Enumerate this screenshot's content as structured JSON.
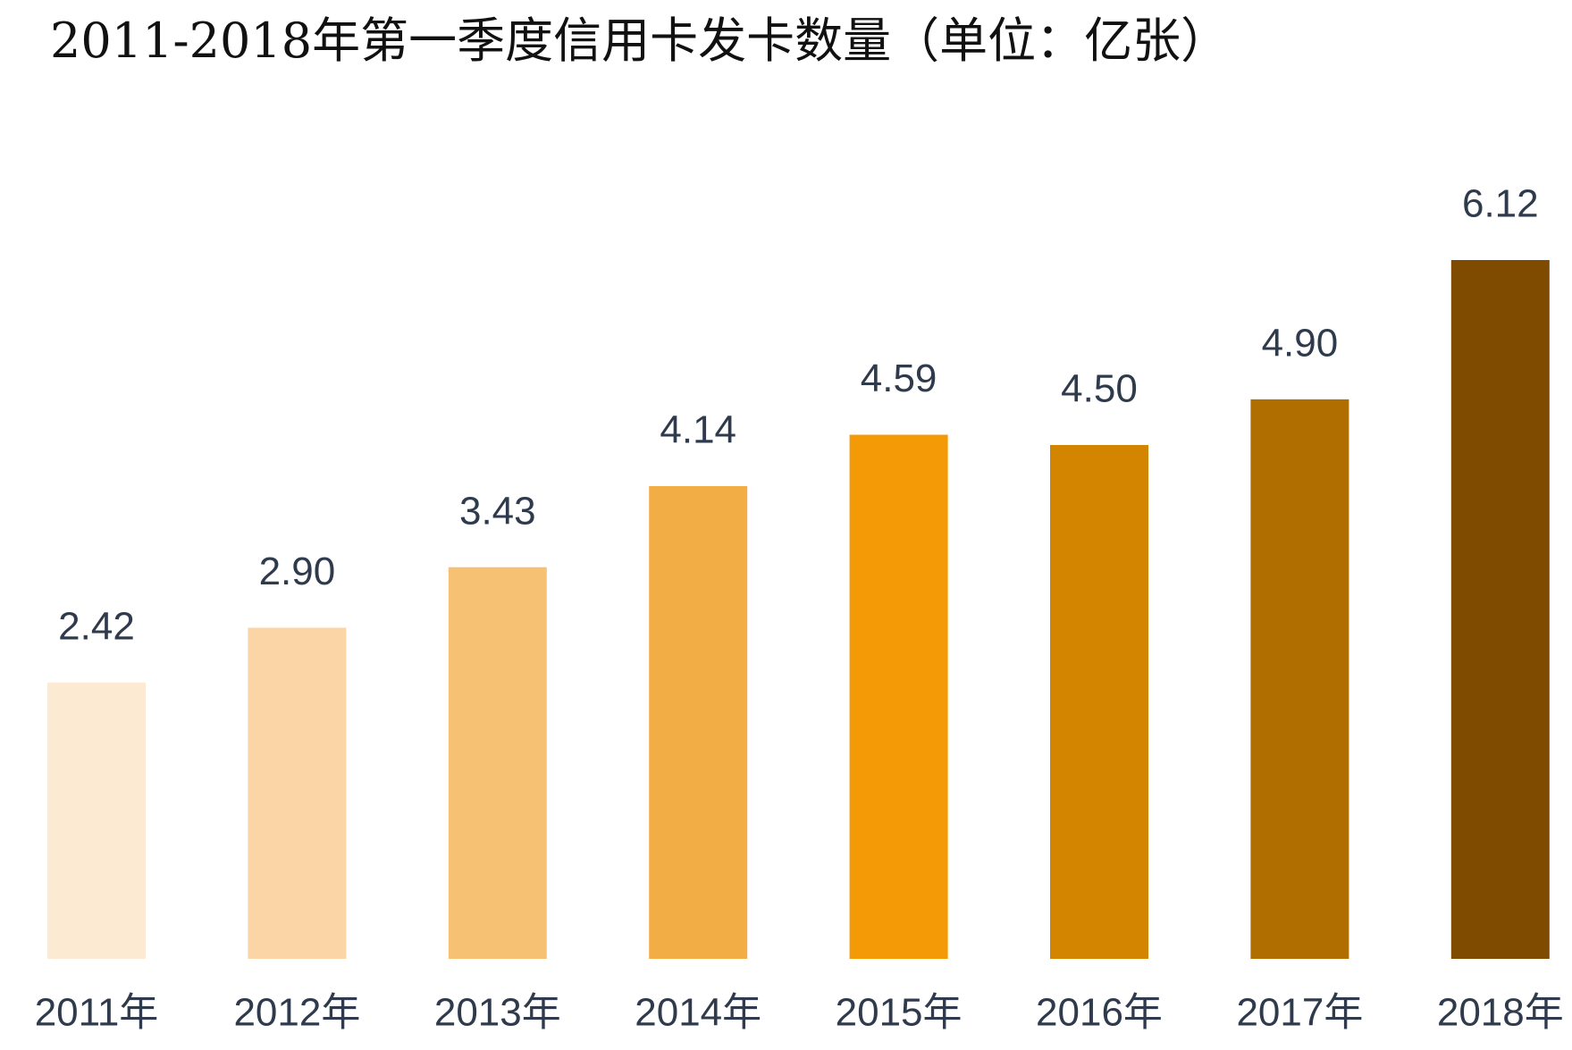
{
  "chart_data": {
    "type": "bar",
    "title": "2011-2018年第一季度信用卡发卡数量（单位：亿张）",
    "categories": [
      "2011年",
      "2012年",
      "2013年",
      "2014年",
      "2015年",
      "2016年",
      "2017年",
      "2018年"
    ],
    "values": [
      2.42,
      2.9,
      3.43,
      4.14,
      4.59,
      4.5,
      4.9,
      6.12
    ],
    "value_labels": [
      "2.42",
      "2.90",
      "3.43",
      "4.14",
      "4.59",
      "4.50",
      "4.90",
      "6.12"
    ],
    "colors": [
      "#fcebd2",
      "#fbd5a5",
      "#f7c173",
      "#f3ad45",
      "#f39a06",
      "#d48500",
      "#b06d00",
      "#7f4b00"
    ]
  }
}
